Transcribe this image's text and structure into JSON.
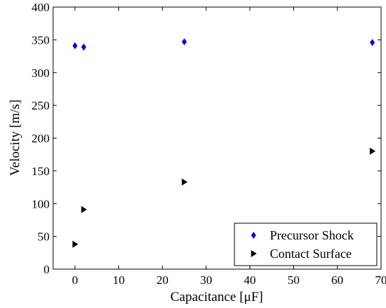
{
  "chart_data": {
    "type": "scatter",
    "title": "",
    "xlabel": "Capacitance [μF]",
    "ylabel": "Velocity [m/s]",
    "xlim": [
      -5,
      70
    ],
    "ylim": [
      0,
      400
    ],
    "xticks": [
      "0",
      "10",
      "20",
      "30",
      "40",
      "50",
      "60",
      "70"
    ],
    "yticks": [
      "0",
      "50",
      "100",
      "150",
      "200",
      "250",
      "300",
      "350",
      "400"
    ],
    "grid": false,
    "legend_position": "bottom-right",
    "series": [
      {
        "name": "Precursor Shock",
        "marker": "diamond",
        "color": "#0000ee",
        "x": [
          0,
          2,
          25,
          68
        ],
        "y": [
          341,
          339,
          347,
          346
        ]
      },
      {
        "name": "Contact Surface",
        "marker": "triangle-right",
        "color": "#000000",
        "x": [
          0,
          2,
          25,
          68
        ],
        "y": [
          38,
          91,
          133,
          180
        ]
      }
    ]
  }
}
